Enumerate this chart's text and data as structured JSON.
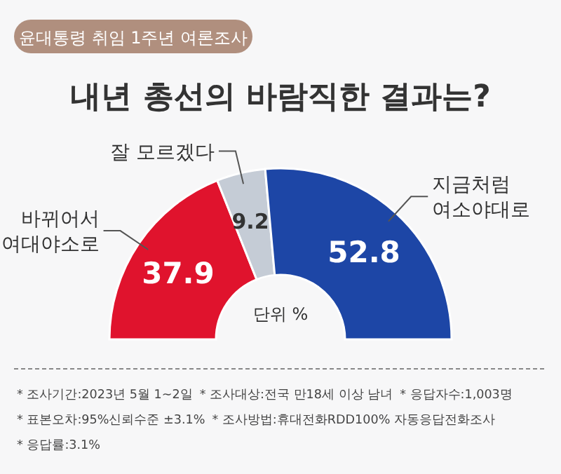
{
  "chart_data": {
    "type": "donut",
    "subtitle": "윤대통령 취임 1주년 여론조사",
    "title": "내년 총선의 바람직한 결과는?",
    "categories": [
      "바뀌어서\n여대야소로",
      "잘 모르겠다",
      "지금처럼\n여소야대로"
    ],
    "values": [
      37.9,
      9.2,
      52.8
    ],
    "colors": [
      "#e0132d",
      "#c5ccd6",
      "#1d46a6"
    ],
    "data_labels": true,
    "annotations": [
      "단위 %",
      "* 조사기간:2023년 5월 1~2일",
      "* 조사대상:전국 만18세 이상 남녀",
      "* 응답자수:1,003명",
      "* 표본오차:95%신뢰수준 ±3.1%",
      "* 조사방법:휴대전화RDD100% 자동응답전화조사",
      "* 응답률:3.1%"
    ]
  }
}
